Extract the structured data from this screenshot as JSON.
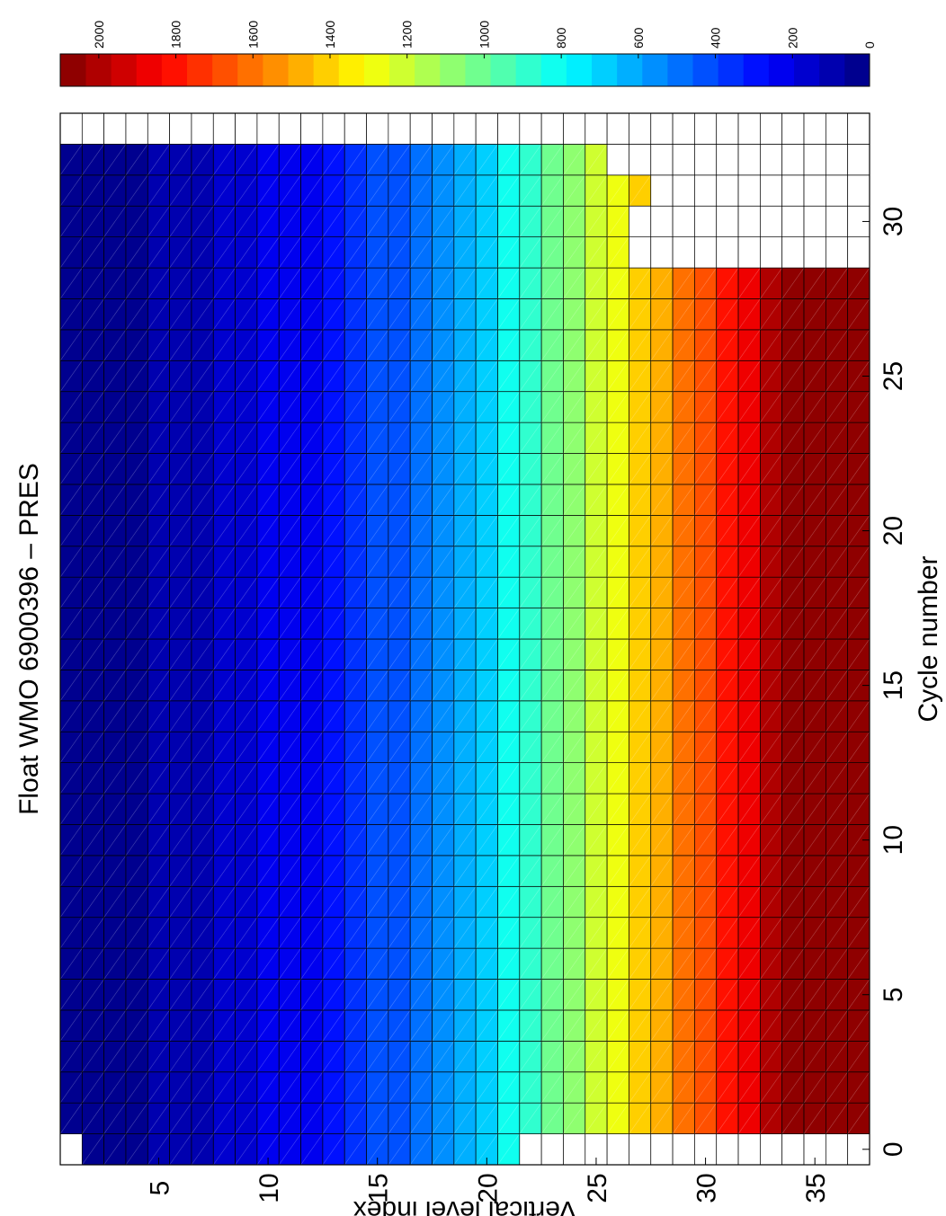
{
  "chart_data": {
    "type": "heatmap",
    "title": "Float WMO 6900396 – PRES",
    "xlabel": "Cycle number",
    "ylabel": "Vertical level index",
    "x_range": [
      0,
      33
    ],
    "y_range": [
      1,
      37
    ],
    "x_ticks": [
      0,
      5,
      10,
      15,
      20,
      25,
      30
    ],
    "y_ticks": [
      5,
      10,
      15,
      20,
      25,
      30,
      35
    ],
    "colorbar": {
      "range": [
        0,
        2100
      ],
      "ticks": [
        0,
        200,
        400,
        600,
        800,
        1000,
        1200,
        1400,
        1600,
        1800,
        2000
      ],
      "colormap": "jet"
    },
    "pressure_by_level": [
      10,
      15,
      25,
      50,
      75,
      100,
      125,
      150,
      175,
      200,
      225,
      250,
      300,
      350,
      400,
      450,
      500,
      550,
      600,
      700,
      800,
      900,
      1000,
      1100,
      1200,
      1300,
      1400,
      1500,
      1600,
      1700,
      1800,
      1900,
      2000,
      2050,
      2100,
      2150,
      2200
    ],
    "cycle_max_level": {
      "0": 21,
      "1": 37,
      "2": 37,
      "3": 37,
      "4": 37,
      "5": 37,
      "6": 37,
      "7": 37,
      "8": 37,
      "9": 37,
      "10": 37,
      "11": 37,
      "12": 37,
      "13": 37,
      "14": 37,
      "15": 37,
      "16": 37,
      "17": 37,
      "18": 37,
      "19": 37,
      "20": 37,
      "21": 37,
      "22": 37,
      "23": 37,
      "24": 37,
      "25": 37,
      "26": 37,
      "27": 37,
      "28": 37,
      "29": 26,
      "30": 26,
      "31": 27,
      "32": 25
    },
    "cycle_missing_levels": {
      "0": [
        1
      ]
    }
  }
}
